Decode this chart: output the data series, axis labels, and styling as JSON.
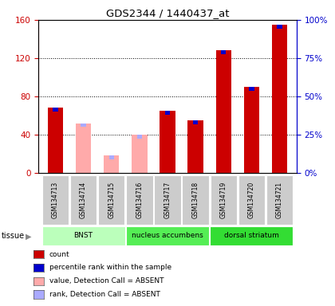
{
  "title": "GDS2344 / 1440437_at",
  "samples": [
    "GSM134713",
    "GSM134714",
    "GSM134715",
    "GSM134716",
    "GSM134717",
    "GSM134718",
    "GSM134719",
    "GSM134720",
    "GSM134721"
  ],
  "count_present": [
    68,
    0,
    0,
    0,
    65,
    55,
    128,
    90,
    155
  ],
  "count_absent": [
    0,
    52,
    18,
    40,
    0,
    0,
    0,
    0,
    0
  ],
  "rank_present": [
    60,
    0,
    0,
    0,
    58,
    52,
    85,
    73,
    92
  ],
  "rank_absent": [
    0,
    42,
    12,
    35,
    0,
    0,
    0,
    0,
    0
  ],
  "tissues": [
    {
      "label": "BNST",
      "start": 0,
      "end": 3
    },
    {
      "label": "nucleus accumbens",
      "start": 3,
      "end": 6
    },
    {
      "label": "dorsal striatum",
      "start": 6,
      "end": 9
    }
  ],
  "tissue_colors": [
    "#bbffbb",
    "#55ee55",
    "#33dd33"
  ],
  "ylim_left": [
    0,
    160
  ],
  "ylim_right": [
    0,
    100
  ],
  "yticks_left": [
    0,
    40,
    80,
    120,
    160
  ],
  "ytick_labels_left": [
    "0",
    "40",
    "80",
    "120",
    "160"
  ],
  "yticks_right": [
    0,
    25,
    50,
    75,
    100
  ],
  "ytick_labels_right": [
    "0%",
    "25%",
    "50%",
    "75%",
    "100%"
  ],
  "color_count": "#cc0000",
  "color_rank": "#0000cc",
  "color_absent_count": "#ffaaaa",
  "color_absent_rank": "#aaaaff",
  "left_axis_color": "#cc0000",
  "right_axis_color": "#0000cc"
}
